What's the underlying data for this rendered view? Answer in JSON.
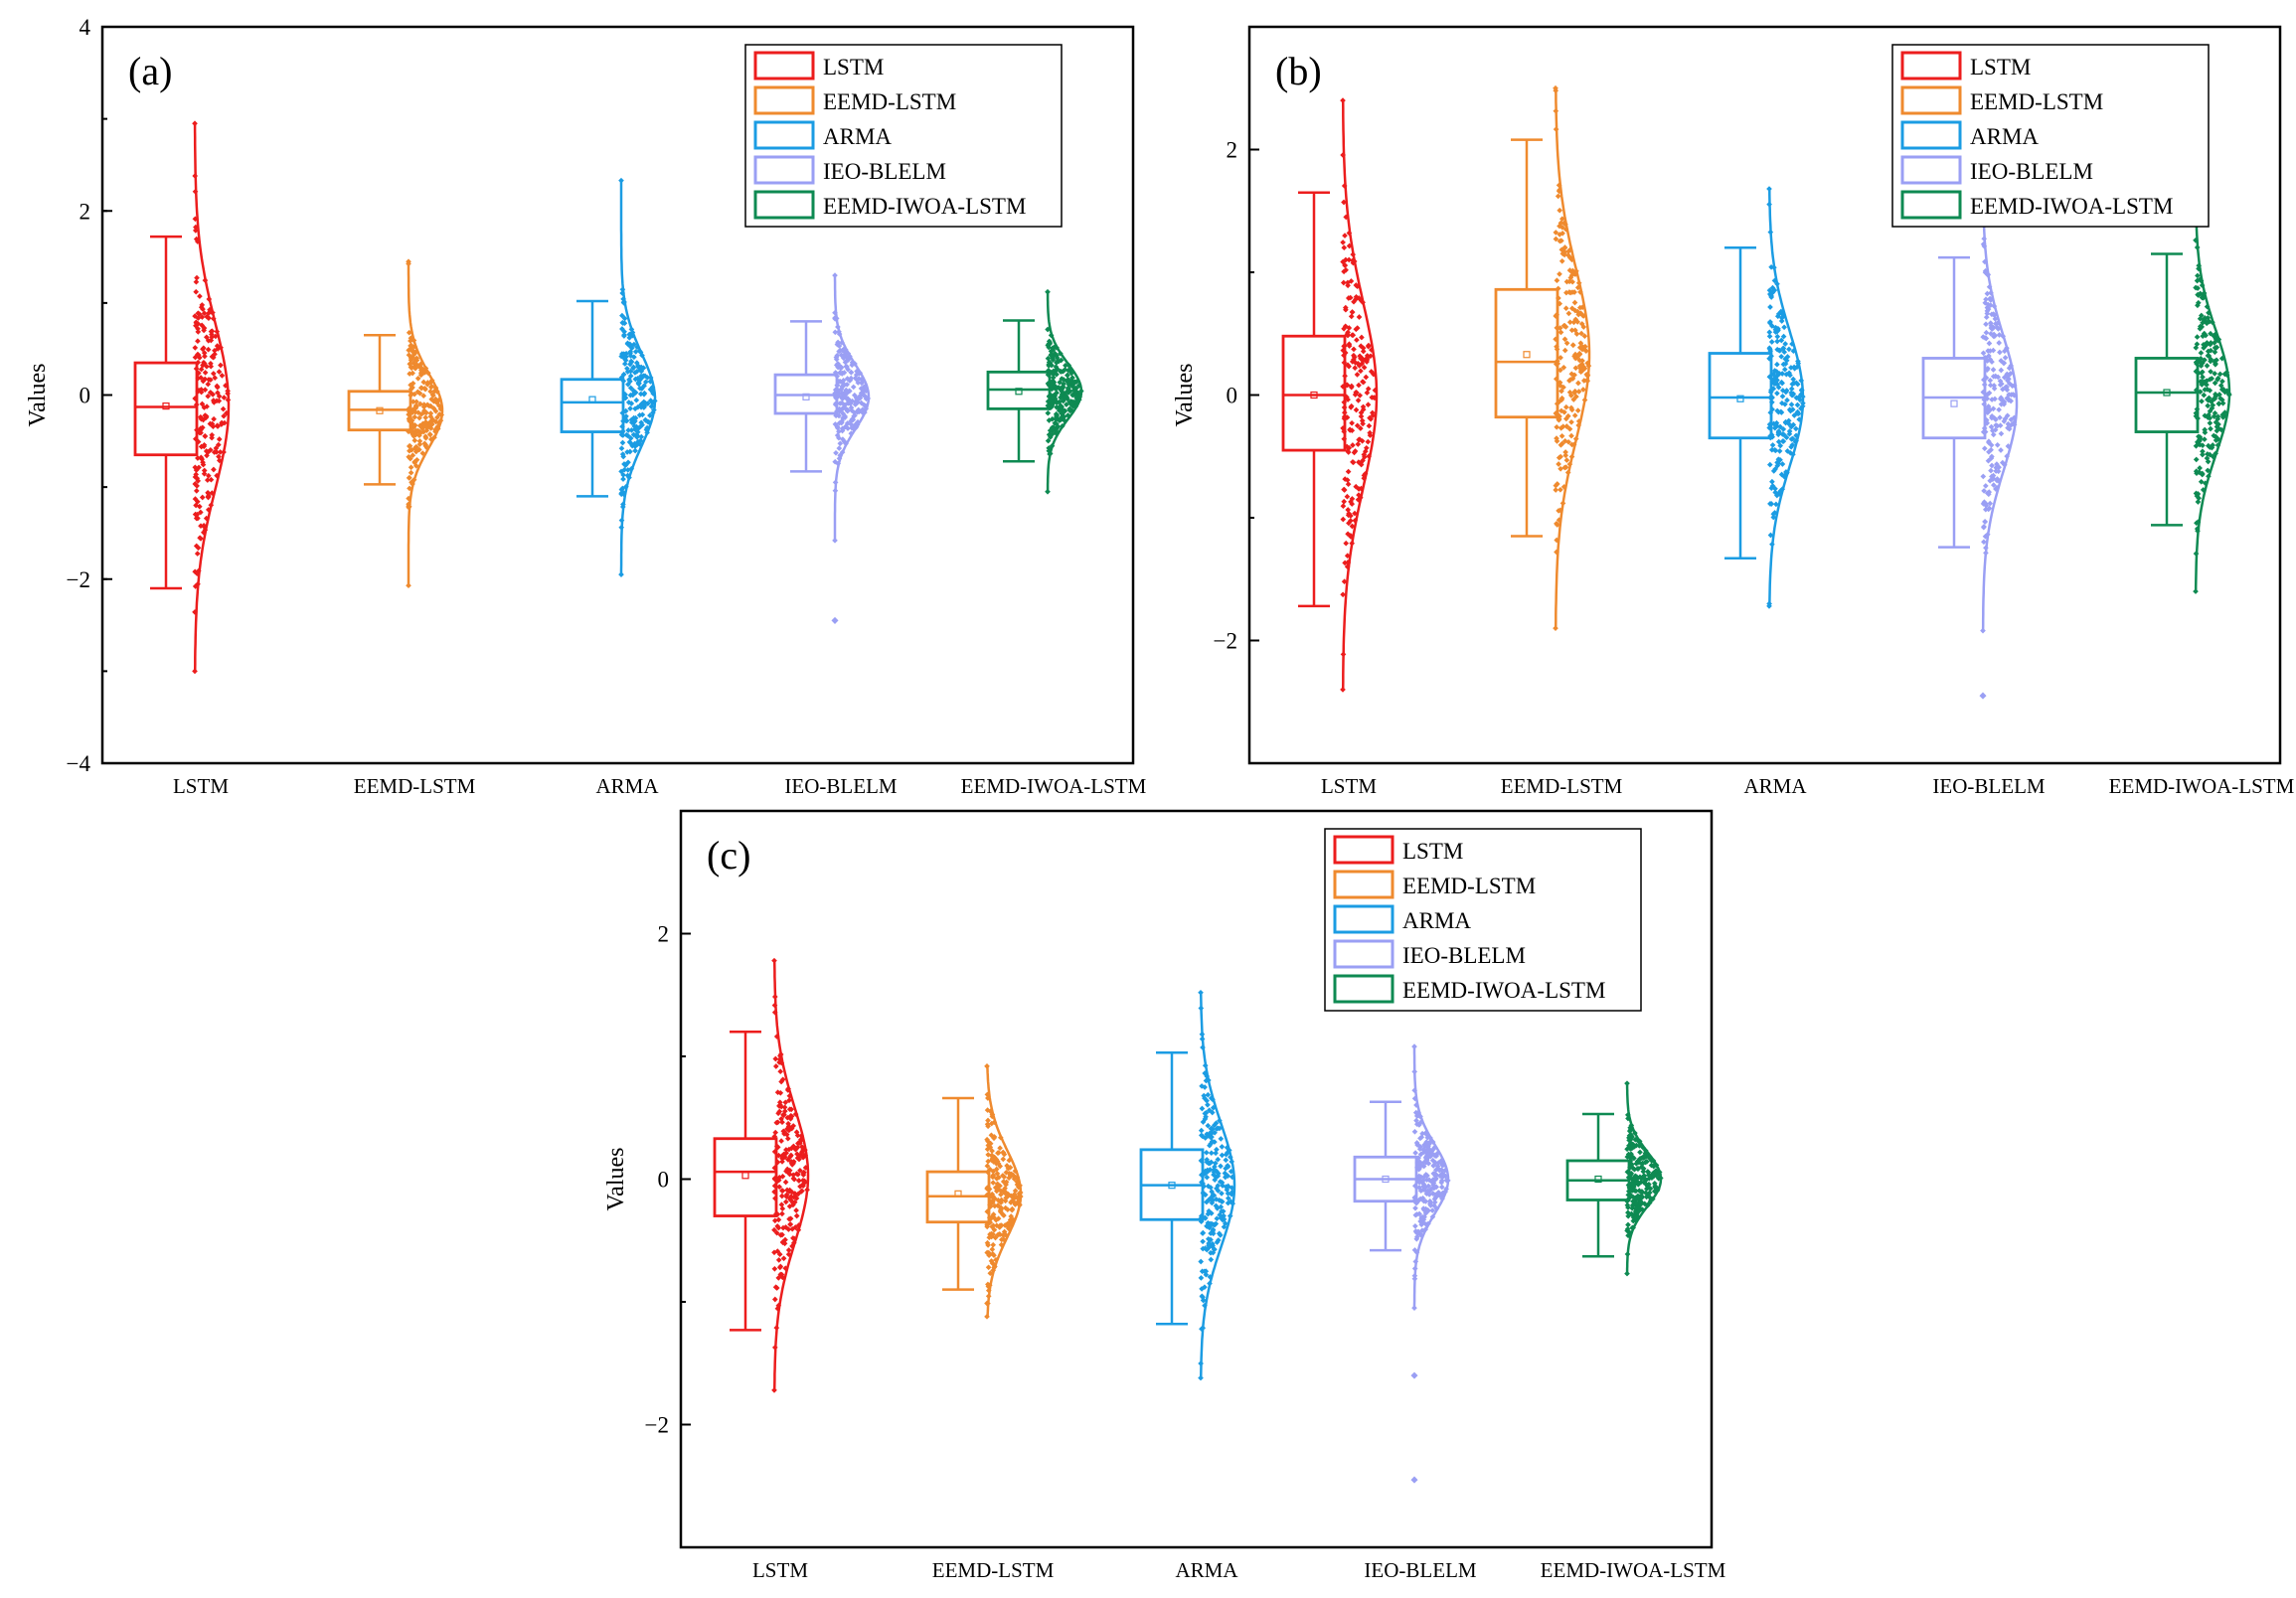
{
  "figure": {
    "palette": {
      "LSTM": "#ec1d1d",
      "EEMD-LSTM": "#ef8a2e",
      "ARMA": "#1b9ce3",
      "IEO-BLELM": "#9a9ff4",
      "EEMD-IWOA-LSTM": "#0e8a52"
    }
  },
  "chart_data": [
    {
      "type": "box",
      "panel_label": "(a)",
      "ylabel": "Values",
      "ylim": [
        -4,
        4
      ],
      "yticks": [
        -4,
        -2,
        0,
        2,
        4
      ],
      "y_minor_step": 1,
      "legend_position": "top-right",
      "legend": [
        "LSTM",
        "EEMD-LSTM",
        "ARMA",
        "IEO-BLELM",
        "EEMD-IWOA-LSTM"
      ],
      "categories": [
        "LSTM",
        "EEMD-LSTM",
        "ARMA",
        "IEO-BLELM",
        "EEMD-IWOA-LSTM"
      ],
      "series": [
        {
          "name": "LSTM",
          "whisker_low": -2.1,
          "q1": -0.65,
          "median": -0.13,
          "mean": -0.12,
          "q3": 0.35,
          "whisker_high": 1.72,
          "points_min": -3.0,
          "points_max": 2.95,
          "sd": 0.9,
          "outliers": []
        },
        {
          "name": "EEMD-LSTM",
          "whisker_low": -0.97,
          "q1": -0.38,
          "median": -0.16,
          "mean": -0.17,
          "q3": 0.04,
          "whisker_high": 0.65,
          "points_min": -2.07,
          "points_max": 1.45,
          "sd": 0.4,
          "outliers": []
        },
        {
          "name": "ARMA",
          "whisker_low": -1.1,
          "q1": -0.4,
          "median": -0.08,
          "mean": -0.05,
          "q3": 0.17,
          "whisker_high": 1.02,
          "points_min": -1.95,
          "points_max": 2.33,
          "sd": 0.5,
          "outliers": []
        },
        {
          "name": "IEO-BLELM",
          "whisker_low": -0.83,
          "q1": -0.2,
          "median": 0.0,
          "mean": -0.02,
          "q3": 0.22,
          "whisker_high": 0.8,
          "points_min": -1.58,
          "points_max": 1.3,
          "sd": 0.35,
          "outliers": [
            -2.45
          ]
        },
        {
          "name": "EEMD-IWOA-LSTM",
          "whisker_low": -0.72,
          "q1": -0.15,
          "median": 0.06,
          "mean": 0.04,
          "q3": 0.25,
          "whisker_high": 0.81,
          "points_min": -1.05,
          "points_max": 1.12,
          "sd": 0.3,
          "outliers": []
        }
      ]
    },
    {
      "type": "box",
      "panel_label": "(b)",
      "ylabel": "Values",
      "ylim": [
        -3,
        3
      ],
      "yticks": [
        -2,
        0,
        2
      ],
      "y_minor_step": 1,
      "legend_position": "top-right",
      "legend": [
        "LSTM",
        "EEMD-LSTM",
        "ARMA",
        "IEO-BLELM",
        "EEMD-IWOA-LSTM"
      ],
      "categories": [
        "LSTM",
        "EEMD-LSTM",
        "ARMA",
        "IEO-BLELM",
        "EEMD-IWOA-LSTM"
      ],
      "series": [
        {
          "name": "LSTM",
          "whisker_low": -1.72,
          "q1": -0.45,
          "median": 0.0,
          "mean": 0.0,
          "q3": 0.48,
          "whisker_high": 1.65,
          "points_min": -2.4,
          "points_max": 2.4,
          "sd": 0.75,
          "outliers": []
        },
        {
          "name": "EEMD-LSTM",
          "whisker_low": -1.15,
          "q1": -0.18,
          "median": 0.27,
          "mean": 0.33,
          "q3": 0.86,
          "whisker_high": 2.08,
          "points_min": -1.9,
          "points_max": 2.5,
          "sd": 0.7,
          "outliers": []
        },
        {
          "name": "ARMA",
          "whisker_low": -1.33,
          "q1": -0.35,
          "median": -0.02,
          "mean": -0.03,
          "q3": 0.34,
          "whisker_high": 1.2,
          "points_min": -1.72,
          "points_max": 1.68,
          "sd": 0.55,
          "outliers": []
        },
        {
          "name": "IEO-BLELM",
          "whisker_low": -1.24,
          "q1": -0.35,
          "median": -0.02,
          "mean": -0.07,
          "q3": 0.3,
          "whisker_high": 1.12,
          "points_min": -1.92,
          "points_max": 1.55,
          "sd": 0.55,
          "outliers": [
            -2.45
          ]
        },
        {
          "name": "EEMD-IWOA-LSTM",
          "whisker_low": -1.06,
          "q1": -0.3,
          "median": 0.02,
          "mean": 0.02,
          "q3": 0.3,
          "whisker_high": 1.15,
          "points_min": -1.6,
          "points_max": 1.55,
          "sd": 0.5,
          "outliers": []
        }
      ]
    },
    {
      "type": "box",
      "panel_label": "(c)",
      "ylabel": "Values",
      "ylim": [
        -3,
        3
      ],
      "yticks": [
        -2,
        0,
        2
      ],
      "y_minor_step": 1,
      "legend_position": "top-right",
      "legend": [
        "LSTM",
        "EEMD-LSTM",
        "ARMA",
        "IEO-BLELM",
        "EEMD-IWOA-LSTM"
      ],
      "categories": [
        "LSTM",
        "EEMD-LSTM",
        "ARMA",
        "IEO-BLELM",
        "EEMD-IWOA-LSTM"
      ],
      "series": [
        {
          "name": "LSTM",
          "whisker_low": -1.23,
          "q1": -0.3,
          "median": 0.06,
          "mean": 0.03,
          "q3": 0.33,
          "whisker_high": 1.2,
          "points_min": -1.72,
          "points_max": 1.78,
          "sd": 0.55,
          "outliers": []
        },
        {
          "name": "EEMD-LSTM",
          "whisker_low": -0.9,
          "q1": -0.35,
          "median": -0.14,
          "mean": -0.12,
          "q3": 0.06,
          "whisker_high": 0.66,
          "points_min": -1.12,
          "points_max": 0.92,
          "sd": 0.35,
          "outliers": []
        },
        {
          "name": "ARMA",
          "whisker_low": -1.18,
          "q1": -0.33,
          "median": -0.05,
          "mean": -0.05,
          "q3": 0.24,
          "whisker_high": 1.03,
          "points_min": -1.62,
          "points_max": 1.52,
          "sd": 0.5,
          "outliers": []
        },
        {
          "name": "IEO-BLELM",
          "whisker_low": -0.58,
          "q1": -0.18,
          "median": 0.0,
          "mean": 0.0,
          "q3": 0.18,
          "whisker_high": 0.63,
          "points_min": -1.05,
          "points_max": 1.08,
          "sd": 0.28,
          "outliers": [
            -1.6,
            -2.45
          ]
        },
        {
          "name": "EEMD-IWOA-LSTM",
          "whisker_low": -0.63,
          "q1": -0.17,
          "median": -0.01,
          "mean": 0.0,
          "q3": 0.15,
          "whisker_high": 0.53,
          "points_min": -0.77,
          "points_max": 0.78,
          "sd": 0.22,
          "outliers": []
        }
      ]
    }
  ]
}
